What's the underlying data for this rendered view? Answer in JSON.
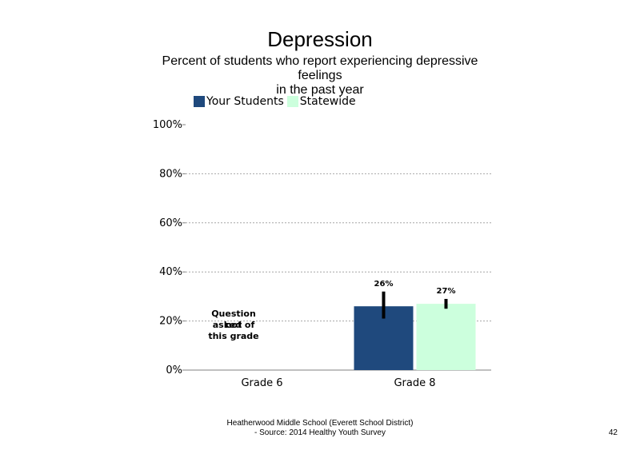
{
  "chart_data": {
    "type": "bar",
    "title": "Depression",
    "subtitle_lines": [
      "Percent of students who report experiencing depressive",
      "feelings",
      "in the past year"
    ],
    "categories": [
      "Grade 6",
      "Grade 8"
    ],
    "series": [
      {
        "name": "Your Students",
        "color": "#1f497d",
        "values": [
          null,
          26
        ],
        "labels": [
          "",
          "26%"
        ],
        "error": [
          null,
          [
            21,
            32
          ]
        ]
      },
      {
        "name": "Statewide",
        "color": "#ccffdd",
        "values": [
          null,
          27
        ],
        "labels": [
          "",
          "27%"
        ],
        "error": [
          null,
          [
            25,
            29
          ]
        ]
      }
    ],
    "ylim": [
      0,
      100
    ],
    "yticks": [
      0,
      20,
      40,
      60,
      80,
      100
    ],
    "ytick_labels": [
      "0%",
      "20%",
      "40%",
      "60%",
      "80%",
      "100%"
    ],
    "grid": true,
    "legend_position": "top-left",
    "annotation_lines": [
      "Question not",
      "asked of",
      "this grade"
    ]
  },
  "footer": {
    "line1": "Heatherwood Middle School (Everett School District)",
    "line2": "- Source: 2014 Healthy Youth Survey"
  },
  "page_number": "42"
}
